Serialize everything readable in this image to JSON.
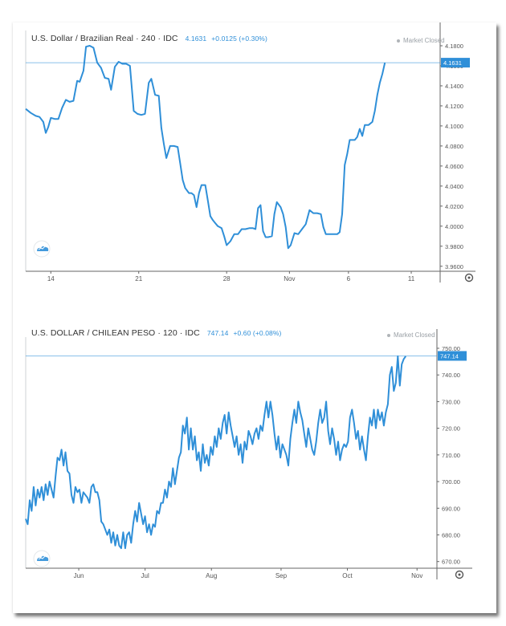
{
  "colors": {
    "series": "#2f8fd8",
    "axis": "#666666",
    "grid_line": "#2f8fd8"
  },
  "chart_data": [
    {
      "type": "line",
      "title": "U.S. Dollar / Brazilian Real · 240 · IDC",
      "last_price": "4.1631",
      "change": "+0.0125 (+0.30%)",
      "status": "Market Closed",
      "watermark_icon": "cloud-logo-icon",
      "y_ticks": [
        "4.1800",
        "4.1600",
        "4.1400",
        "4.1200",
        "4.1000",
        "4.0800",
        "4.0600",
        "4.0400",
        "4.0200",
        "4.0000",
        "3.9800",
        "3.9600"
      ],
      "x_ticks": [
        {
          "label": "14",
          "x": 2.0
        },
        {
          "label": "21",
          "x": 9.0
        },
        {
          "label": "28",
          "x": 16.0
        },
        {
          "label": "Nov",
          "x": 21.0
        },
        {
          "label": "6",
          "x": 25.7
        },
        {
          "label": "11",
          "x": 30.7
        }
      ],
      "ylim": [
        3.955,
        4.192
      ],
      "xlim": [
        0,
        33.0
      ],
      "reference_line": 4.1631,
      "points": [
        [
          0.0,
          4.117
        ],
        [
          0.4,
          4.113
        ],
        [
          0.8,
          4.11
        ],
        [
          1.1,
          4.109
        ],
        [
          1.4,
          4.104
        ],
        [
          1.6,
          4.093
        ],
        [
          1.8,
          4.099
        ],
        [
          2.0,
          4.108
        ],
        [
          2.3,
          4.107
        ],
        [
          2.6,
          4.107
        ],
        [
          2.9,
          4.118
        ],
        [
          3.2,
          4.126
        ],
        [
          3.5,
          4.124
        ],
        [
          3.8,
          4.125
        ],
        [
          4.1,
          4.145
        ],
        [
          4.3,
          4.144
        ],
        [
          4.6,
          4.155
        ],
        [
          4.8,
          4.179
        ],
        [
          5.1,
          4.18
        ],
        [
          5.4,
          4.178
        ],
        [
          5.7,
          4.163
        ],
        [
          6.0,
          4.158
        ],
        [
          6.3,
          4.148
        ],
        [
          6.6,
          4.147
        ],
        [
          6.8,
          4.136
        ],
        [
          7.1,
          4.159
        ],
        [
          7.4,
          4.164
        ],
        [
          7.7,
          4.162
        ],
        [
          8.0,
          4.162
        ],
        [
          8.3,
          4.16
        ],
        [
          8.6,
          4.115
        ],
        [
          8.9,
          4.112
        ],
        [
          9.2,
          4.111
        ],
        [
          9.5,
          4.112
        ],
        [
          9.8,
          4.143
        ],
        [
          10.0,
          4.147
        ],
        [
          10.3,
          4.131
        ],
        [
          10.6,
          4.13
        ],
        [
          10.8,
          4.098
        ],
        [
          11.0,
          4.082
        ],
        [
          11.2,
          4.068
        ],
        [
          11.5,
          4.08
        ],
        [
          11.8,
          4.08
        ],
        [
          12.1,
          4.079
        ],
        [
          12.3,
          4.063
        ],
        [
          12.5,
          4.046
        ],
        [
          12.7,
          4.038
        ],
        [
          13.0,
          4.033
        ],
        [
          13.2,
          4.033
        ],
        [
          13.4,
          4.031
        ],
        [
          13.6,
          4.019
        ],
        [
          13.8,
          4.033
        ],
        [
          14.0,
          4.041
        ],
        [
          14.3,
          4.041
        ],
        [
          14.5,
          4.026
        ],
        [
          14.7,
          4.01
        ],
        [
          14.9,
          4.006
        ],
        [
          15.1,
          4.003
        ],
        [
          15.3,
          4.0
        ],
        [
          15.6,
          3.998
        ],
        [
          15.8,
          3.99
        ],
        [
          16.0,
          3.981
        ],
        [
          16.3,
          3.985
        ],
        [
          16.6,
          3.992
        ],
        [
          16.9,
          3.992
        ],
        [
          17.2,
          3.997
        ],
        [
          17.5,
          3.997
        ],
        [
          17.8,
          3.998
        ],
        [
          18.1,
          3.998
        ],
        [
          18.3,
          3.997
        ],
        [
          18.5,
          4.018
        ],
        [
          18.7,
          4.021
        ],
        [
          18.9,
          3.995
        ],
        [
          19.1,
          3.989
        ],
        [
          19.3,
          3.989
        ],
        [
          19.6,
          3.99
        ],
        [
          19.8,
          4.012
        ],
        [
          20.0,
          4.024
        ],
        [
          20.3,
          4.019
        ],
        [
          20.5,
          4.012
        ],
        [
          20.7,
          3.999
        ],
        [
          20.9,
          3.978
        ],
        [
          21.1,
          3.981
        ],
        [
          21.4,
          3.993
        ],
        [
          21.7,
          3.992
        ],
        [
          22.0,
          3.997
        ],
        [
          22.3,
          4.002
        ],
        [
          22.6,
          4.016
        ],
        [
          22.9,
          4.013
        ],
        [
          23.2,
          4.013
        ],
        [
          23.5,
          4.012
        ],
        [
          23.7,
          3.999
        ],
        [
          23.9,
          3.992
        ],
        [
          24.2,
          3.992
        ],
        [
          24.5,
          3.992
        ],
        [
          24.8,
          3.992
        ],
        [
          25.0,
          3.994
        ],
        [
          25.2,
          4.012
        ],
        [
          25.4,
          4.061
        ],
        [
          25.6,
          4.072
        ],
        [
          25.8,
          4.086
        ],
        [
          26.0,
          4.086
        ],
        [
          26.2,
          4.086
        ],
        [
          26.4,
          4.089
        ],
        [
          26.6,
          4.097
        ],
        [
          26.8,
          4.09
        ],
        [
          27.0,
          4.101
        ],
        [
          27.3,
          4.101
        ],
        [
          27.6,
          4.104
        ],
        [
          27.8,
          4.115
        ],
        [
          28.0,
          4.131
        ],
        [
          28.2,
          4.143
        ],
        [
          28.4,
          4.152
        ],
        [
          28.6,
          4.163
        ]
      ]
    },
    {
      "type": "line",
      "title": "U.S. DOLLAR / CHILEAN PESO · 120 · IDC",
      "last_price": "747.14",
      "change": "+0.60 (+0.08%)",
      "status": "Market Closed",
      "watermark_icon": "cloud-logo-icon",
      "y_ticks": [
        "750.00",
        "740.00",
        "730.00",
        "720.00",
        "710.00",
        "700.00",
        "690.00",
        "680.00",
        "670.00"
      ],
      "x_ticks": [
        {
          "label": "Jun",
          "x": 1.3
        },
        {
          "label": "Jul",
          "x": 2.3
        },
        {
          "label": "Aug",
          "x": 3.3
        },
        {
          "label": "Sep",
          "x": 4.35
        },
        {
          "label": "Oct",
          "x": 5.35
        },
        {
          "label": "Nov",
          "x": 6.4
        }
      ],
      "ylim": [
        667.5,
        753.0
      ],
      "xlim": [
        0.5,
        6.7
      ],
      "reference_line": 747.14,
      "points": [
        [
          0.5,
          686
        ],
        [
          0.53,
          684
        ],
        [
          0.56,
          693
        ],
        [
          0.59,
          689
        ],
        [
          0.62,
          698
        ],
        [
          0.65,
          691
        ],
        [
          0.68,
          697
        ],
        [
          0.71,
          694
        ],
        [
          0.74,
          698
        ],
        [
          0.77,
          693
        ],
        [
          0.8,
          699
        ],
        [
          0.83,
          695
        ],
        [
          0.86,
          700
        ],
        [
          0.89,
          697
        ],
        [
          0.92,
          694
        ],
        [
          0.95,
          702
        ],
        [
          0.98,
          709
        ],
        [
          1.01,
          708
        ],
        [
          1.04,
          712
        ],
        [
          1.07,
          706
        ],
        [
          1.1,
          711
        ],
        [
          1.13,
          704
        ],
        [
          1.16,
          703
        ],
        [
          1.19,
          695
        ],
        [
          1.22,
          692
        ],
        [
          1.25,
          698
        ],
        [
          1.28,
          696
        ],
        [
          1.31,
          697
        ],
        [
          1.34,
          692
        ],
        [
          1.37,
          696
        ],
        [
          1.4,
          695
        ],
        [
          1.43,
          694
        ],
        [
          1.46,
          692
        ],
        [
          1.49,
          698
        ],
        [
          1.52,
          699
        ],
        [
          1.55,
          696
        ],
        [
          1.58,
          696
        ],
        [
          1.61,
          693
        ],
        [
          1.64,
          685
        ],
        [
          1.67,
          684
        ],
        [
          1.7,
          682
        ],
        [
          1.73,
          680
        ],
        [
          1.76,
          682
        ],
        [
          1.79,
          677
        ],
        [
          1.82,
          681
        ],
        [
          1.85,
          676
        ],
        [
          1.88,
          680
        ],
        [
          1.91,
          676
        ],
        [
          1.94,
          675
        ],
        [
          1.97,
          681
        ],
        [
          2.0,
          675
        ],
        [
          2.03,
          680
        ],
        [
          2.06,
          681
        ],
        [
          2.09,
          677
        ],
        [
          2.12,
          684
        ],
        [
          2.15,
          689
        ],
        [
          2.18,
          685
        ],
        [
          2.21,
          692
        ],
        [
          2.24,
          688
        ],
        [
          2.27,
          684
        ],
        [
          2.3,
          687
        ],
        [
          2.33,
          681
        ],
        [
          2.36,
          684
        ],
        [
          2.39,
          680
        ],
        [
          2.42,
          684
        ],
        [
          2.45,
          683
        ],
        [
          2.48,
          689
        ],
        [
          2.51,
          688
        ],
        [
          2.54,
          692
        ],
        [
          2.57,
          692
        ],
        [
          2.6,
          697
        ],
        [
          2.63,
          694
        ],
        [
          2.66,
          700
        ],
        [
          2.69,
          698
        ],
        [
          2.72,
          705
        ],
        [
          2.75,
          699
        ],
        [
          2.78,
          704
        ],
        [
          2.81,
          709
        ],
        [
          2.84,
          711
        ],
        [
          2.87,
          721
        ],
        [
          2.9,
          718
        ],
        [
          2.93,
          724
        ],
        [
          2.96,
          712
        ],
        [
          2.99,
          720
        ],
        [
          3.02,
          712
        ],
        [
          3.05,
          717
        ],
        [
          3.08,
          708
        ],
        [
          3.11,
          711
        ],
        [
          3.14,
          704
        ],
        [
          3.17,
          714
        ],
        [
          3.2,
          707
        ],
        [
          3.23,
          710
        ],
        [
          3.26,
          706
        ],
        [
          3.29,
          713
        ],
        [
          3.32,
          710
        ],
        [
          3.35,
          717
        ],
        [
          3.38,
          713
        ],
        [
          3.41,
          720
        ],
        [
          3.44,
          716
        ],
        [
          3.47,
          722
        ],
        [
          3.5,
          725
        ],
        [
          3.53,
          718
        ],
        [
          3.56,
          726
        ],
        [
          3.59,
          721
        ],
        [
          3.62,
          717
        ],
        [
          3.65,
          713
        ],
        [
          3.68,
          717
        ],
        [
          3.71,
          710
        ],
        [
          3.74,
          714
        ],
        [
          3.77,
          707
        ],
        [
          3.8,
          715
        ],
        [
          3.83,
          712
        ],
        [
          3.86,
          719
        ],
        [
          3.89,
          717
        ],
        [
          3.92,
          714
        ],
        [
          3.95,
          718
        ],
        [
          3.98,
          720
        ],
        [
          4.01,
          716
        ],
        [
          4.04,
          721
        ],
        [
          4.07,
          719
        ],
        [
          4.1,
          725
        ],
        [
          4.13,
          730
        ],
        [
          4.16,
          724
        ],
        [
          4.19,
          730
        ],
        [
          4.22,
          725
        ],
        [
          4.25,
          718
        ],
        [
          4.28,
          712
        ],
        [
          4.31,
          717
        ],
        [
          4.34,
          709
        ],
        [
          4.37,
          714
        ],
        [
          4.4,
          712
        ],
        [
          4.43,
          710
        ],
        [
          4.46,
          706
        ],
        [
          4.49,
          716
        ],
        [
          4.52,
          722
        ],
        [
          4.55,
          727
        ],
        [
          4.58,
          722
        ],
        [
          4.61,
          730
        ],
        [
          4.64,
          726
        ],
        [
          4.67,
          723
        ],
        [
          4.7,
          718
        ],
        [
          4.73,
          713
        ],
        [
          4.76,
          720
        ],
        [
          4.79,
          716
        ],
        [
          4.82,
          712
        ],
        [
          4.85,
          710
        ],
        [
          4.88,
          715
        ],
        [
          4.91,
          722
        ],
        [
          4.94,
          727
        ],
        [
          4.97,
          722
        ],
        [
          5.0,
          724
        ],
        [
          5.03,
          730
        ],
        [
          5.06,
          719
        ],
        [
          5.09,
          714
        ],
        [
          5.12,
          720
        ],
        [
          5.15,
          716
        ],
        [
          5.18,
          710
        ],
        [
          5.21,
          715
        ],
        [
          5.24,
          708
        ],
        [
          5.27,
          712
        ],
        [
          5.3,
          714
        ],
        [
          5.33,
          713
        ],
        [
          5.36,
          715
        ],
        [
          5.39,
          724
        ],
        [
          5.42,
          727
        ],
        [
          5.45,
          722
        ],
        [
          5.48,
          716
        ],
        [
          5.51,
          719
        ],
        [
          5.54,
          712
        ],
        [
          5.57,
          717
        ],
        [
          5.6,
          712
        ],
        [
          5.63,
          708
        ],
        [
          5.66,
          717
        ],
        [
          5.69,
          724
        ],
        [
          5.72,
          721
        ],
        [
          5.75,
          727
        ],
        [
          5.78,
          720
        ],
        [
          5.81,
          727
        ],
        [
          5.84,
          723
        ],
        [
          5.87,
          726
        ],
        [
          5.9,
          721
        ],
        [
          5.93,
          726
        ],
        [
          5.96,
          729
        ],
        [
          5.99,
          740
        ],
        [
          6.02,
          743
        ],
        [
          6.05,
          734
        ],
        [
          6.08,
          737
        ],
        [
          6.11,
          747
        ],
        [
          6.14,
          736
        ],
        [
          6.17,
          744
        ],
        [
          6.2,
          746
        ],
        [
          6.23,
          747
        ]
      ]
    }
  ]
}
